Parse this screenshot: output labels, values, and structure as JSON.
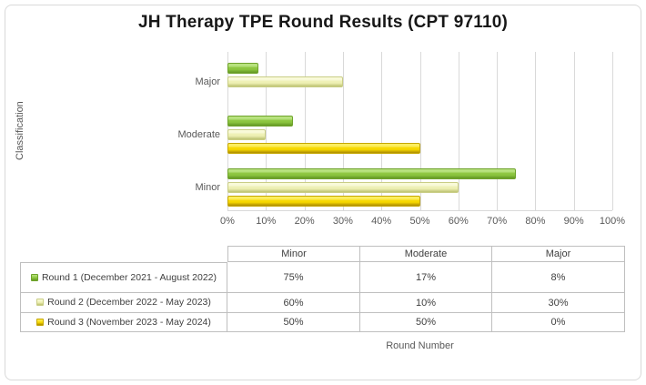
{
  "chart_data": {
    "type": "bar",
    "orientation": "horizontal-grouped",
    "title": "JH Therapy TPE Round Results (CPT 97110)",
    "axis_label_y": "Classification",
    "axis_label_x": "Round Number",
    "categories": [
      "Major",
      "Moderate",
      "Minor"
    ],
    "series": [
      {
        "name": "Round 1 (December 2021 - August 2022)",
        "values": [
          8,
          17,
          75
        ],
        "colors": {
          "light": "#b8e27f",
          "base": "#8cc63f",
          "dark": "#639723",
          "border": "#6fa32c"
        }
      },
      {
        "name": "Round 2 (December 2022 - May 2023)",
        "values": [
          30,
          10,
          60
        ],
        "colors": {
          "light": "#f9fad9",
          "base": "#eef0b4",
          "dark": "#bcc271",
          "border": "#c9cd85"
        }
      },
      {
        "name": "Round 3 (November 2023 - May 2024)",
        "values": [
          0,
          50,
          50
        ],
        "colors": {
          "light": "#fcee60",
          "base": "#f7d800",
          "dark": "#ab8b00",
          "border": "#c5a702"
        }
      }
    ],
    "x_ticks": [
      "0%",
      "10%",
      "20%",
      "30%",
      "40%",
      "50%",
      "60%",
      "70%",
      "80%",
      "90%",
      "100%"
    ],
    "xlim": [
      0,
      100
    ],
    "gridlines": "vertical",
    "legend_position": "data-table-left-column",
    "data_table": {
      "column_headers": [
        "Minor",
        "Moderate",
        "Major"
      ],
      "rows": [
        {
          "label": "Round 1 (December 2021 - August 2022)",
          "values": [
            "75%",
            "17%",
            "8%"
          ]
        },
        {
          "label": "Round 2 (December 2022 - May 2023)",
          "values": [
            "60%",
            "10%",
            "30%"
          ]
        },
        {
          "label": "Round 3 (November 2023 - May 2024)",
          "values": [
            "50%",
            "50%",
            "0%"
          ]
        }
      ]
    }
  }
}
